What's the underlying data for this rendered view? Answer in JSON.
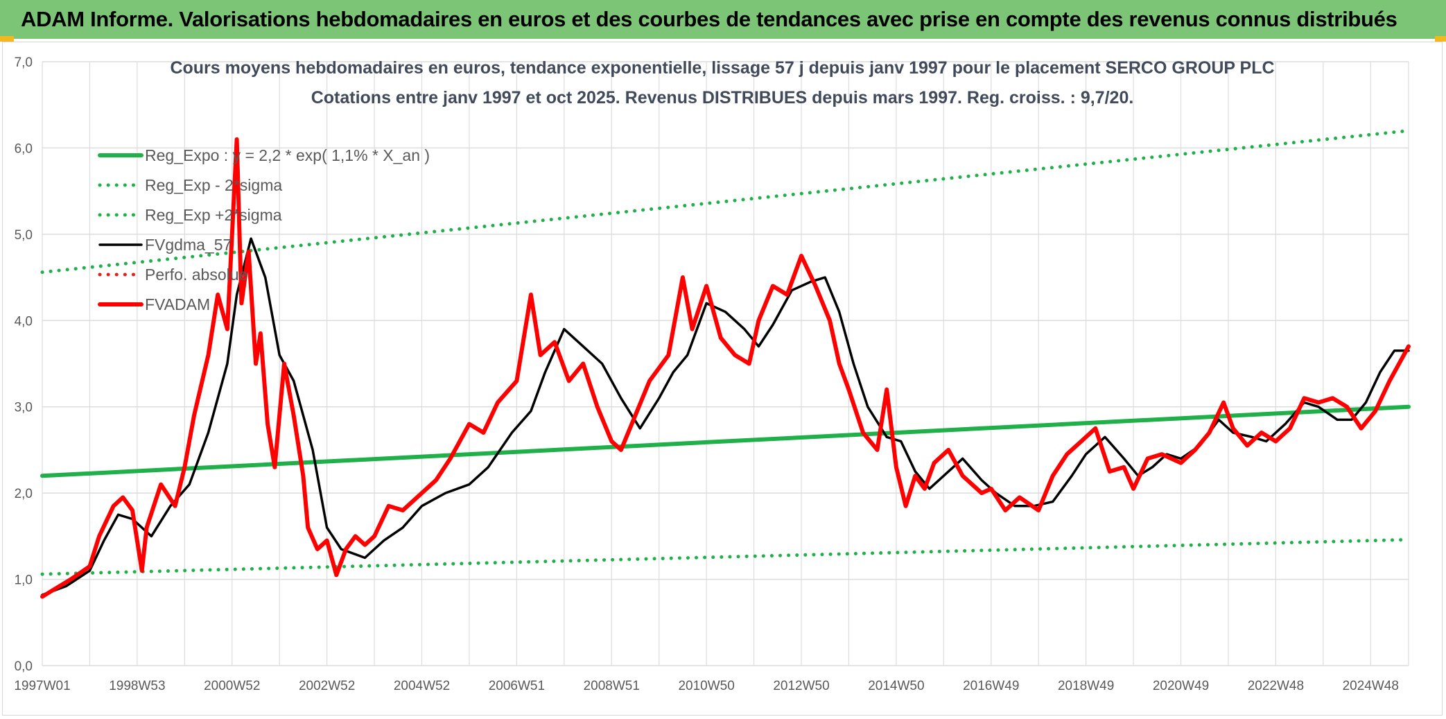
{
  "banner": {
    "title": "ADAM Informe. Valorisations hebdomadaires en euros et des courbes de tendances avec prise en compte des revenus connus distribués"
  },
  "colors": {
    "banner_bg": "#7cc576",
    "accent_corner": "#f2b81c",
    "reg_green": "#1fb04a",
    "gdma_black": "#000000",
    "adam_red": "#ff0000",
    "perfo_red": "#e0201c",
    "grid": "#dcdcdc",
    "axis_text": "#595959",
    "title_text": "#404a5a"
  },
  "chart_data": {
    "type": "line",
    "title": "Cours moyens hebdomadaires en euros, tendance exponentielle, lissage 57 j depuis janv 1997 pour le placement SERCO GROUP PLC",
    "subtitle": "Cotations entre janv 1997 et oct 2025. Revenus DISTRIBUES depuis mars 1997. Reg. croiss. : 9,7/20.",
    "xlabel": "",
    "ylabel": "",
    "ylim": [
      0,
      7
    ],
    "y_ticks": [
      "0,0",
      "1,0",
      "2,0",
      "3,0",
      "4,0",
      "5,0",
      "6,0",
      "7,0"
    ],
    "x_range": [
      1997.0,
      2025.8
    ],
    "x_ticks": [
      {
        "label": "1997W01",
        "x": 1997.0
      },
      {
        "label": "1998W53",
        "x": 1999.0
      },
      {
        "label": "2000W52",
        "x": 2001.0
      },
      {
        "label": "2002W52",
        "x": 2003.0
      },
      {
        "label": "2004W52",
        "x": 2005.0
      },
      {
        "label": "2006W51",
        "x": 2007.0
      },
      {
        "label": "2008W51",
        "x": 2009.0
      },
      {
        "label": "2010W50",
        "x": 2011.0
      },
      {
        "label": "2012W50",
        "x": 2013.0
      },
      {
        "label": "2014W50",
        "x": 2015.0
      },
      {
        "label": "2016W49",
        "x": 2017.0
      },
      {
        "label": "2018W49",
        "x": 2019.0
      },
      {
        "label": "2020W49",
        "x": 2021.0
      },
      {
        "label": "2022W48",
        "x": 2023.0
      },
      {
        "label": "2024W48",
        "x": 2025.0
      }
    ],
    "legend_position": "top-left",
    "series": [
      {
        "name": "Reg_Expo : y = 2,2 * exp( 1,1% *  X_an )",
        "style": "solid-thick",
        "color": "#1fb04a",
        "x": [
          1997.0,
          2025.8
        ],
        "y": [
          2.2,
          3.0
        ]
      },
      {
        "name": "Reg_Exp - 2*sigma",
        "style": "dotted",
        "color": "#1fb04a",
        "x": [
          1997.0,
          2025.8
        ],
        "y": [
          1.06,
          1.46
        ]
      },
      {
        "name": "Reg_Exp +2*sigma",
        "style": "dotted",
        "color": "#1fb04a",
        "x": [
          1997.0,
          2025.8
        ],
        "y": [
          4.56,
          6.2
        ]
      },
      {
        "name": "FVgdma_57",
        "style": "solid",
        "color": "#000000",
        "x": [
          1997.0,
          1997.5,
          1998.0,
          1998.3,
          1998.6,
          1998.9,
          1999.3,
          1999.7,
          2000.1,
          2000.5,
          2000.9,
          2001.1,
          2001.4,
          2001.7,
          2002.0,
          2002.3,
          2002.7,
          2003.0,
          2003.3,
          2003.8,
          2004.2,
          2004.6,
          2005.0,
          2005.5,
          2006.0,
          2006.4,
          2006.9,
          2007.3,
          2007.6,
          2008.0,
          2008.4,
          2008.8,
          2009.2,
          2009.6,
          2010.0,
          2010.3,
          2010.6,
          2011.0,
          2011.4,
          2011.8,
          2012.1,
          2012.4,
          2012.8,
          2013.2,
          2013.5,
          2013.8,
          2014.1,
          2014.4,
          2014.8,
          2015.1,
          2015.4,
          2015.7,
          2016.0,
          2016.4,
          2016.8,
          2017.1,
          2017.5,
          2017.9,
          2018.3,
          2018.7,
          2019.0,
          2019.4,
          2019.8,
          2020.1,
          2020.4,
          2020.7,
          2021.0,
          2021.4,
          2021.8,
          2022.1,
          2022.5,
          2022.8,
          2023.2,
          2023.6,
          2023.9,
          2024.3,
          2024.6,
          2024.9,
          2025.2,
          2025.5,
          2025.8
        ],
        "y": [
          0.82,
          0.92,
          1.1,
          1.45,
          1.75,
          1.7,
          1.5,
          1.85,
          2.1,
          2.7,
          3.5,
          4.3,
          4.95,
          4.5,
          3.6,
          3.3,
          2.5,
          1.6,
          1.35,
          1.25,
          1.45,
          1.6,
          1.85,
          2.0,
          2.1,
          2.3,
          2.7,
          2.95,
          3.4,
          3.9,
          3.7,
          3.5,
          3.1,
          2.75,
          3.1,
          3.4,
          3.6,
          4.2,
          4.1,
          3.9,
          3.7,
          3.95,
          4.35,
          4.45,
          4.5,
          4.1,
          3.5,
          3.0,
          2.65,
          2.6,
          2.25,
          2.05,
          2.2,
          2.4,
          2.15,
          2.0,
          1.85,
          1.85,
          1.9,
          2.2,
          2.45,
          2.65,
          2.4,
          2.2,
          2.3,
          2.45,
          2.4,
          2.55,
          2.85,
          2.7,
          2.65,
          2.6,
          2.8,
          3.05,
          3.0,
          2.85,
          2.85,
          3.05,
          3.4,
          3.65,
          3.65
        ]
      },
      {
        "name": "Perfo. absolue",
        "style": "dotted",
        "color": "#e0201c",
        "x": [],
        "y": []
      },
      {
        "name": "FVADAM",
        "style": "solid-thick",
        "color": "#ff0000",
        "x": [
          1997.0,
          1997.3,
          1997.6,
          1998.0,
          1998.2,
          1998.5,
          1998.7,
          1998.9,
          1999.1,
          1999.2,
          1999.5,
          1999.8,
          2000.0,
          2000.2,
          2000.5,
          2000.7,
          2000.9,
          2001.0,
          2001.1,
          2001.2,
          2001.35,
          2001.5,
          2001.6,
          2001.75,
          2001.9,
          2002.1,
          2002.3,
          2002.5,
          2002.6,
          2002.8,
          2003.0,
          2003.2,
          2003.4,
          2003.6,
          2003.8,
          2004.0,
          2004.3,
          2004.6,
          2005.0,
          2005.3,
          2005.6,
          2006.0,
          2006.3,
          2006.6,
          2007.0,
          2007.3,
          2007.5,
          2007.8,
          2008.1,
          2008.4,
          2008.7,
          2009.0,
          2009.2,
          2009.5,
          2009.8,
          2010.2,
          2010.5,
          2010.7,
          2011.0,
          2011.3,
          2011.6,
          2011.9,
          2012.1,
          2012.4,
          2012.7,
          2013.0,
          2013.3,
          2013.6,
          2013.8,
          2014.0,
          2014.3,
          2014.6,
          2014.8,
          2015.0,
          2015.2,
          2015.4,
          2015.6,
          2015.8,
          2016.1,
          2016.4,
          2016.8,
          2017.0,
          2017.3,
          2017.6,
          2018.0,
          2018.3,
          2018.6,
          2018.9,
          2019.2,
          2019.5,
          2019.8,
          2020.0,
          2020.3,
          2020.6,
          2021.0,
          2021.3,
          2021.6,
          2021.9,
          2022.1,
          2022.4,
          2022.7,
          2023.0,
          2023.3,
          2023.6,
          2023.9,
          2024.2,
          2024.5,
          2024.8,
          2025.1,
          2025.4,
          2025.8
        ],
        "y": [
          0.8,
          0.9,
          1.0,
          1.15,
          1.5,
          1.85,
          1.95,
          1.8,
          1.1,
          1.6,
          2.1,
          1.85,
          2.3,
          2.9,
          3.6,
          4.3,
          3.9,
          5.0,
          6.1,
          4.2,
          4.8,
          3.5,
          3.85,
          2.8,
          2.3,
          3.5,
          2.9,
          2.2,
          1.6,
          1.35,
          1.45,
          1.05,
          1.35,
          1.5,
          1.4,
          1.5,
          1.85,
          1.8,
          2.0,
          2.15,
          2.4,
          2.8,
          2.7,
          3.05,
          3.3,
          4.3,
          3.6,
          3.75,
          3.3,
          3.5,
          3.0,
          2.6,
          2.5,
          2.9,
          3.3,
          3.6,
          4.5,
          3.9,
          4.4,
          3.8,
          3.6,
          3.5,
          4.0,
          4.4,
          4.3,
          4.75,
          4.4,
          4.0,
          3.5,
          3.2,
          2.7,
          2.5,
          3.2,
          2.3,
          1.85,
          2.2,
          2.05,
          2.35,
          2.5,
          2.2,
          2.0,
          2.05,
          1.8,
          1.95,
          1.8,
          2.2,
          2.45,
          2.6,
          2.75,
          2.25,
          2.3,
          2.05,
          2.4,
          2.45,
          2.35,
          2.5,
          2.7,
          3.05,
          2.75,
          2.55,
          2.7,
          2.6,
          2.75,
          3.1,
          3.05,
          3.1,
          3.0,
          2.75,
          2.95,
          3.3,
          3.7
        ]
      }
    ]
  }
}
